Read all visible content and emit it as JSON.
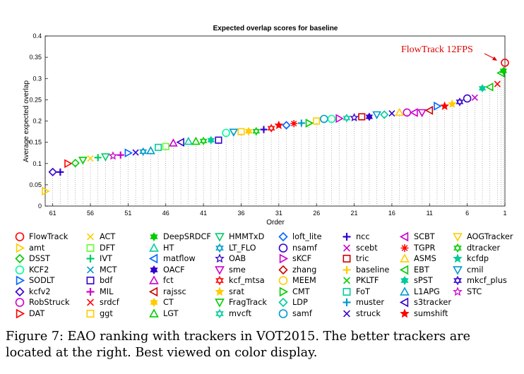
{
  "chart_data": {
    "type": "scatter",
    "title": "Expected overlap scores for baseline",
    "xlabel": "Order",
    "ylabel": "Average expected overlap",
    "xlim": [
      62,
      1
    ],
    "ylim": [
      0,
      0.4
    ],
    "xticks": [
      61,
      56,
      51,
      46,
      41,
      36,
      31,
      26,
      21,
      16,
      11,
      6,
      1
    ],
    "yticks": [
      0,
      0.05,
      0.1,
      0.15,
      0.2,
      0.25,
      0.3,
      0.35,
      0.4
    ],
    "ytick_labels": [
      "0",
      "0.05",
      "0.1",
      "0.15",
      "0.2",
      "0.25",
      "0.3",
      "0.35",
      "0.4"
    ],
    "grid": "vertical dotted lines at each order",
    "annotation": {
      "text": "FlowTrack 12FPS",
      "order": 1,
      "value": 0.337
    },
    "series": [
      {
        "name": "amt",
        "order": 62,
        "value": 0.035
      },
      {
        "name": "kcfv2",
        "order": 61,
        "value": 0.08
      },
      {
        "name": "ncc",
        "order": 60,
        "value": 0.08
      },
      {
        "name": "DAT",
        "order": 59,
        "value": 0.1
      },
      {
        "name": "DSST",
        "order": 58,
        "value": 0.101
      },
      {
        "name": "FragTrack",
        "order": 57,
        "value": 0.108
      },
      {
        "name": "ACT",
        "order": 56,
        "value": 0.112
      },
      {
        "name": "IVT",
        "order": 55,
        "value": 0.114
      },
      {
        "name": "HMMTxD",
        "order": 54,
        "value": 0.116
      },
      {
        "name": "STC",
        "order": 53,
        "value": 0.118
      },
      {
        "name": "MIL",
        "order": 52,
        "value": 0.12
      },
      {
        "name": "SODLT",
        "order": 51,
        "value": 0.125
      },
      {
        "name": "struck",
        "order": 50,
        "value": 0.126
      },
      {
        "name": "LT_FLO",
        "order": 49,
        "value": 0.128
      },
      {
        "name": "L1APG",
        "order": 48,
        "value": 0.13
      },
      {
        "name": "FoT",
        "order": 47,
        "value": 0.138
      },
      {
        "name": "DFT",
        "order": 46,
        "value": 0.14
      },
      {
        "name": "fct",
        "order": 45,
        "value": 0.148
      },
      {
        "name": "s3tracker",
        "order": 44,
        "value": 0.15
      },
      {
        "name": "HT",
        "order": 43,
        "value": 0.152
      },
      {
        "name": "LGT",
        "order": 42,
        "value": 0.152
      },
      {
        "name": "dtracker",
        "order": 41,
        "value": 0.153
      },
      {
        "name": "sPST",
        "order": 40,
        "value": 0.155
      },
      {
        "name": "bdf",
        "order": 39,
        "value": 0.155
      },
      {
        "name": "KCF2",
        "order": 38,
        "value": 0.172
      },
      {
        "name": "cmil",
        "order": 37,
        "value": 0.174
      },
      {
        "name": "ggt",
        "order": 36,
        "value": 0.175
      },
      {
        "name": "CT",
        "order": 35,
        "value": 0.176
      },
      {
        "name": "dtracker",
        "order": 34,
        "value": 0.176
      },
      {
        "name": "ncc",
        "order": 33,
        "value": 0.18
      },
      {
        "name": "kcf_mtsa",
        "order": 32,
        "value": 0.183
      },
      {
        "name": "sumshift",
        "order": 31,
        "value": 0.19
      },
      {
        "name": "loft_lite",
        "order": 30,
        "value": 0.19
      },
      {
        "name": "TGPR",
        "order": 29,
        "value": 0.194
      },
      {
        "name": "muster",
        "order": 28,
        "value": 0.195
      },
      {
        "name": "CMT",
        "order": 27,
        "value": 0.195
      },
      {
        "name": "ggt",
        "order": 26,
        "value": 0.2
      },
      {
        "name": "samf",
        "order": 25,
        "value": 0.205
      },
      {
        "name": "KCF2",
        "order": 24,
        "value": 0.205
      },
      {
        "name": "sKCF",
        "order": 23,
        "value": 0.206
      },
      {
        "name": "mvcft",
        "order": 22,
        "value": 0.207
      },
      {
        "name": "OAB",
        "order": 21,
        "value": 0.208
      },
      {
        "name": "tric",
        "order": 20,
        "value": 0.21
      },
      {
        "name": "OACF",
        "order": 19,
        "value": 0.21
      },
      {
        "name": "cmil",
        "order": 18,
        "value": 0.215
      },
      {
        "name": "LDP",
        "order": 17,
        "value": 0.215
      },
      {
        "name": "struck",
        "order": 16,
        "value": 0.218
      },
      {
        "name": "ASMS",
        "order": 15,
        "value": 0.22
      },
      {
        "name": "RobStruck",
        "order": 14,
        "value": 0.22
      },
      {
        "name": "SCBT",
        "order": 13,
        "value": 0.22
      },
      {
        "name": "sme",
        "order": 12,
        "value": 0.22
      },
      {
        "name": "rajssc",
        "order": 11,
        "value": 0.225
      },
      {
        "name": "SODLT",
        "order": 10,
        "value": 0.235
      },
      {
        "name": "sumshift",
        "order": 9,
        "value": 0.235
      },
      {
        "name": "srat",
        "order": 8,
        "value": 0.24
      },
      {
        "name": "mkcf_plus",
        "order": 7,
        "value": 0.245
      },
      {
        "name": "nsamf",
        "order": 6,
        "value": 0.253
      },
      {
        "name": "scebt",
        "order": 5,
        "value": 0.255
      },
      {
        "name": "sPST",
        "order": 4,
        "value": 0.277
      },
      {
        "name": "EBT",
        "order": 3,
        "value": 0.28
      },
      {
        "name": "srdcf",
        "order": 2,
        "value": 0.287
      },
      {
        "name": "EBT",
        "order": 1.5,
        "value": 0.313
      },
      {
        "name": "DeepSRDCF",
        "order": 1.2,
        "value": 0.318
      },
      {
        "name": "FlowTrack",
        "order": 1,
        "value": 0.337
      }
    ]
  },
  "legend": [
    {
      "label": "FlowTrack",
      "marker": "circle",
      "color": "#ff0000"
    },
    {
      "label": "amt",
      "marker": "tri-right",
      "color": "#ffcc00"
    },
    {
      "label": "DSST",
      "marker": "diamond",
      "color": "#00cc00"
    },
    {
      "label": "KCF2",
      "marker": "circle",
      "color": "#00ff99"
    },
    {
      "label": "SODLT",
      "marker": "tri-right",
      "color": "#0066ff"
    },
    {
      "label": "kcfv2",
      "marker": "diamond",
      "color": "#3300cc"
    },
    {
      "label": "RobStruck",
      "marker": "circle",
      "color": "#cc00cc"
    },
    {
      "label": "DAT",
      "marker": "tri-right",
      "color": "#ff0000"
    },
    {
      "label": "ACT",
      "marker": "x",
      "color": "#ffcc00"
    },
    {
      "label": "DFT",
      "marker": "square",
      "color": "#66ff33"
    },
    {
      "label": "IVT",
      "marker": "plus",
      "color": "#00cc66"
    },
    {
      "label": "MCT",
      "marker": "x",
      "color": "#0099cc"
    },
    {
      "label": "bdf",
      "marker": "square",
      "color": "#3300cc"
    },
    {
      "label": "MIL",
      "marker": "plus",
      "color": "#cc00cc"
    },
    {
      "label": "srdcf",
      "marker": "x",
      "color": "#ff0000"
    },
    {
      "label": "ggt",
      "marker": "square",
      "color": "#ffcc00"
    },
    {
      "label": "DeepSRDCF",
      "marker": "hex-star",
      "color": "#00cc00"
    },
    {
      "label": "HT",
      "marker": "tri-up",
      "color": "#00cc99"
    },
    {
      "label": "matflow",
      "marker": "tri-left",
      "color": "#0066ff"
    },
    {
      "label": "OACF",
      "marker": "hex-star",
      "color": "#3300cc"
    },
    {
      "label": "fct",
      "marker": "tri-up",
      "color": "#cc00cc"
    },
    {
      "label": "rajssc",
      "marker": "tri-left",
      "color": "#cc0000"
    },
    {
      "label": "CT",
      "marker": "hex-star",
      "color": "#ffcc00"
    },
    {
      "label": "LGT",
      "marker": "tri-up",
      "color": "#00cc00"
    },
    {
      "label": "HMMTxD",
      "marker": "tri-down",
      "color": "#00cc66"
    },
    {
      "label": "LT_FLO",
      "marker": "hexagram",
      "color": "#0099cc"
    },
    {
      "label": "OAB",
      "marker": "star",
      "color": "#3300cc"
    },
    {
      "label": "sme",
      "marker": "tri-down",
      "color": "#cc00cc"
    },
    {
      "label": "kcf_mtsa",
      "marker": "hexagram",
      "color": "#ff0000"
    },
    {
      "label": "srat",
      "marker": "star-filled",
      "color": "#ffcc00"
    },
    {
      "label": "FragTrack",
      "marker": "tri-down",
      "color": "#00cc00"
    },
    {
      "label": "mvcft",
      "marker": "hexagram",
      "color": "#00cc99"
    },
    {
      "label": "loft_lite",
      "marker": "diamond",
      "color": "#0066ff"
    },
    {
      "label": "nsamf",
      "marker": "circle",
      "color": "#3300cc"
    },
    {
      "label": "sKCF",
      "marker": "tri-right",
      "color": "#cc00cc"
    },
    {
      "label": "zhang",
      "marker": "diamond",
      "color": "#cc0000"
    },
    {
      "label": "MEEM",
      "marker": "circle",
      "color": "#ffcc00"
    },
    {
      "label": "CMT",
      "marker": "tri-right",
      "color": "#00cc00"
    },
    {
      "label": "LDP",
      "marker": "diamond",
      "color": "#00cc99"
    },
    {
      "label": "samf",
      "marker": "circle",
      "color": "#0099cc"
    },
    {
      "label": "ncc",
      "marker": "plus",
      "color": "#3300cc"
    },
    {
      "label": "scebt",
      "marker": "x",
      "color": "#cc00cc"
    },
    {
      "label": "tric",
      "marker": "square",
      "color": "#cc0000"
    },
    {
      "label": "baseline",
      "marker": "plus",
      "color": "#ffcc00"
    },
    {
      "label": "PKLTF",
      "marker": "x",
      "color": "#00cc00"
    },
    {
      "label": "FoT",
      "marker": "square",
      "color": "#00cc99"
    },
    {
      "label": "muster",
      "marker": "plus",
      "color": "#0099cc"
    },
    {
      "label": "struck",
      "marker": "x",
      "color": "#3300cc"
    },
    {
      "label": "SCBT",
      "marker": "tri-left",
      "color": "#cc00cc"
    },
    {
      "label": "TGPR",
      "marker": "asterisk",
      "color": "#ff0000"
    },
    {
      "label": "ASMS",
      "marker": "tri-up",
      "color": "#ffcc00"
    },
    {
      "label": "EBT",
      "marker": "tri-left",
      "color": "#00cc00"
    },
    {
      "label": "sPST",
      "marker": "hex-star",
      "color": "#00cc99"
    },
    {
      "label": "L1APG",
      "marker": "tri-up",
      "color": "#0099cc"
    },
    {
      "label": "s3tracker",
      "marker": "tri-left",
      "color": "#3300cc"
    },
    {
      "label": "sumshift",
      "marker": "star-filled",
      "color": "#ff0000"
    },
    {
      "label": "AOGTracker",
      "marker": "tri-down",
      "color": "#ffcc00"
    },
    {
      "label": "dtracker",
      "marker": "hexagram",
      "color": "#00cc00"
    },
    {
      "label": "kcfdp",
      "marker": "star-filled",
      "color": "#00cc99"
    },
    {
      "label": "cmil",
      "marker": "tri-down",
      "color": "#0099cc"
    },
    {
      "label": "mkcf_plus",
      "marker": "hexagram",
      "color": "#3300cc"
    },
    {
      "label": "STC",
      "marker": "star",
      "color": "#cc00cc"
    }
  ],
  "caption": {
    "text": "Figure 7: EAO ranking with trackers in VOT2015. The better trackers are located at the right. Best viewed on color display."
  }
}
